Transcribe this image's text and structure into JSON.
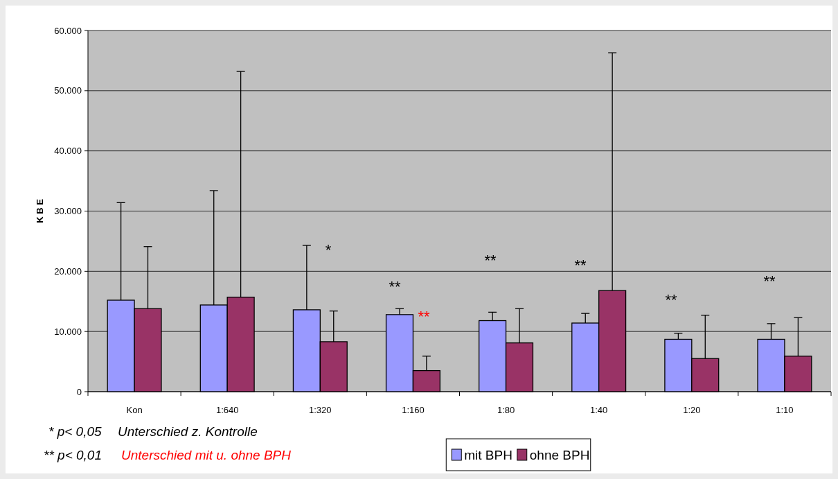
{
  "chart_data": {
    "type": "bar",
    "ylabel": "K B E",
    "categories": [
      "Kon",
      "1:640",
      "1:320",
      "1:160",
      "1:80",
      "1:40",
      "1:20",
      "1:10"
    ],
    "series": [
      {
        "name": "mit BPH",
        "color": "#9999ff",
        "values": [
          15200,
          14400,
          13600,
          12800,
          11800,
          11400,
          8700,
          8700
        ],
        "errors": [
          [
            15200,
            31400
          ],
          [
            14400,
            33400
          ],
          [
            13600,
            24300
          ],
          [
            12800,
            13800
          ],
          [
            11800,
            13200
          ],
          [
            11400,
            13000
          ],
          [
            8700,
            9700
          ],
          [
            8700,
            11300
          ]
        ]
      },
      {
        "name": "ohne BPH",
        "color": "#993366",
        "values": [
          13800,
          15700,
          8300,
          3500,
          8100,
          16800,
          5500,
          5900
        ],
        "errors": [
          [
            13800,
            24100
          ],
          [
            15700,
            53200
          ],
          [
            8300,
            13400
          ],
          [
            3500,
            5900
          ],
          [
            8100,
            13800
          ],
          [
            16800,
            56300
          ],
          [
            5500,
            12700
          ],
          [
            5900,
            12300
          ]
        ]
      }
    ],
    "ylim": [
      0,
      60000
    ],
    "yticks": [
      {
        "value": 0,
        "label": "0"
      },
      {
        "value": 10000,
        "label": "10.000"
      },
      {
        "value": 20000,
        "label": "20.000"
      },
      {
        "value": 30000,
        "label": "30.000"
      },
      {
        "value": 40000,
        "label": "40.000"
      },
      {
        "value": 50000,
        "label": "50.000"
      },
      {
        "value": 60000,
        "label": "60.000"
      }
    ],
    "grid": "y",
    "legend": "bottom",
    "annotations": [
      "*",
      "**",
      "**",
      "**",
      "**",
      "**",
      "**",
      "* p< 0,05",
      "Unterschied z. Kontrolle",
      "** p< 0,01",
      "Unterschied mit u. ohne BPH"
    ]
  }
}
